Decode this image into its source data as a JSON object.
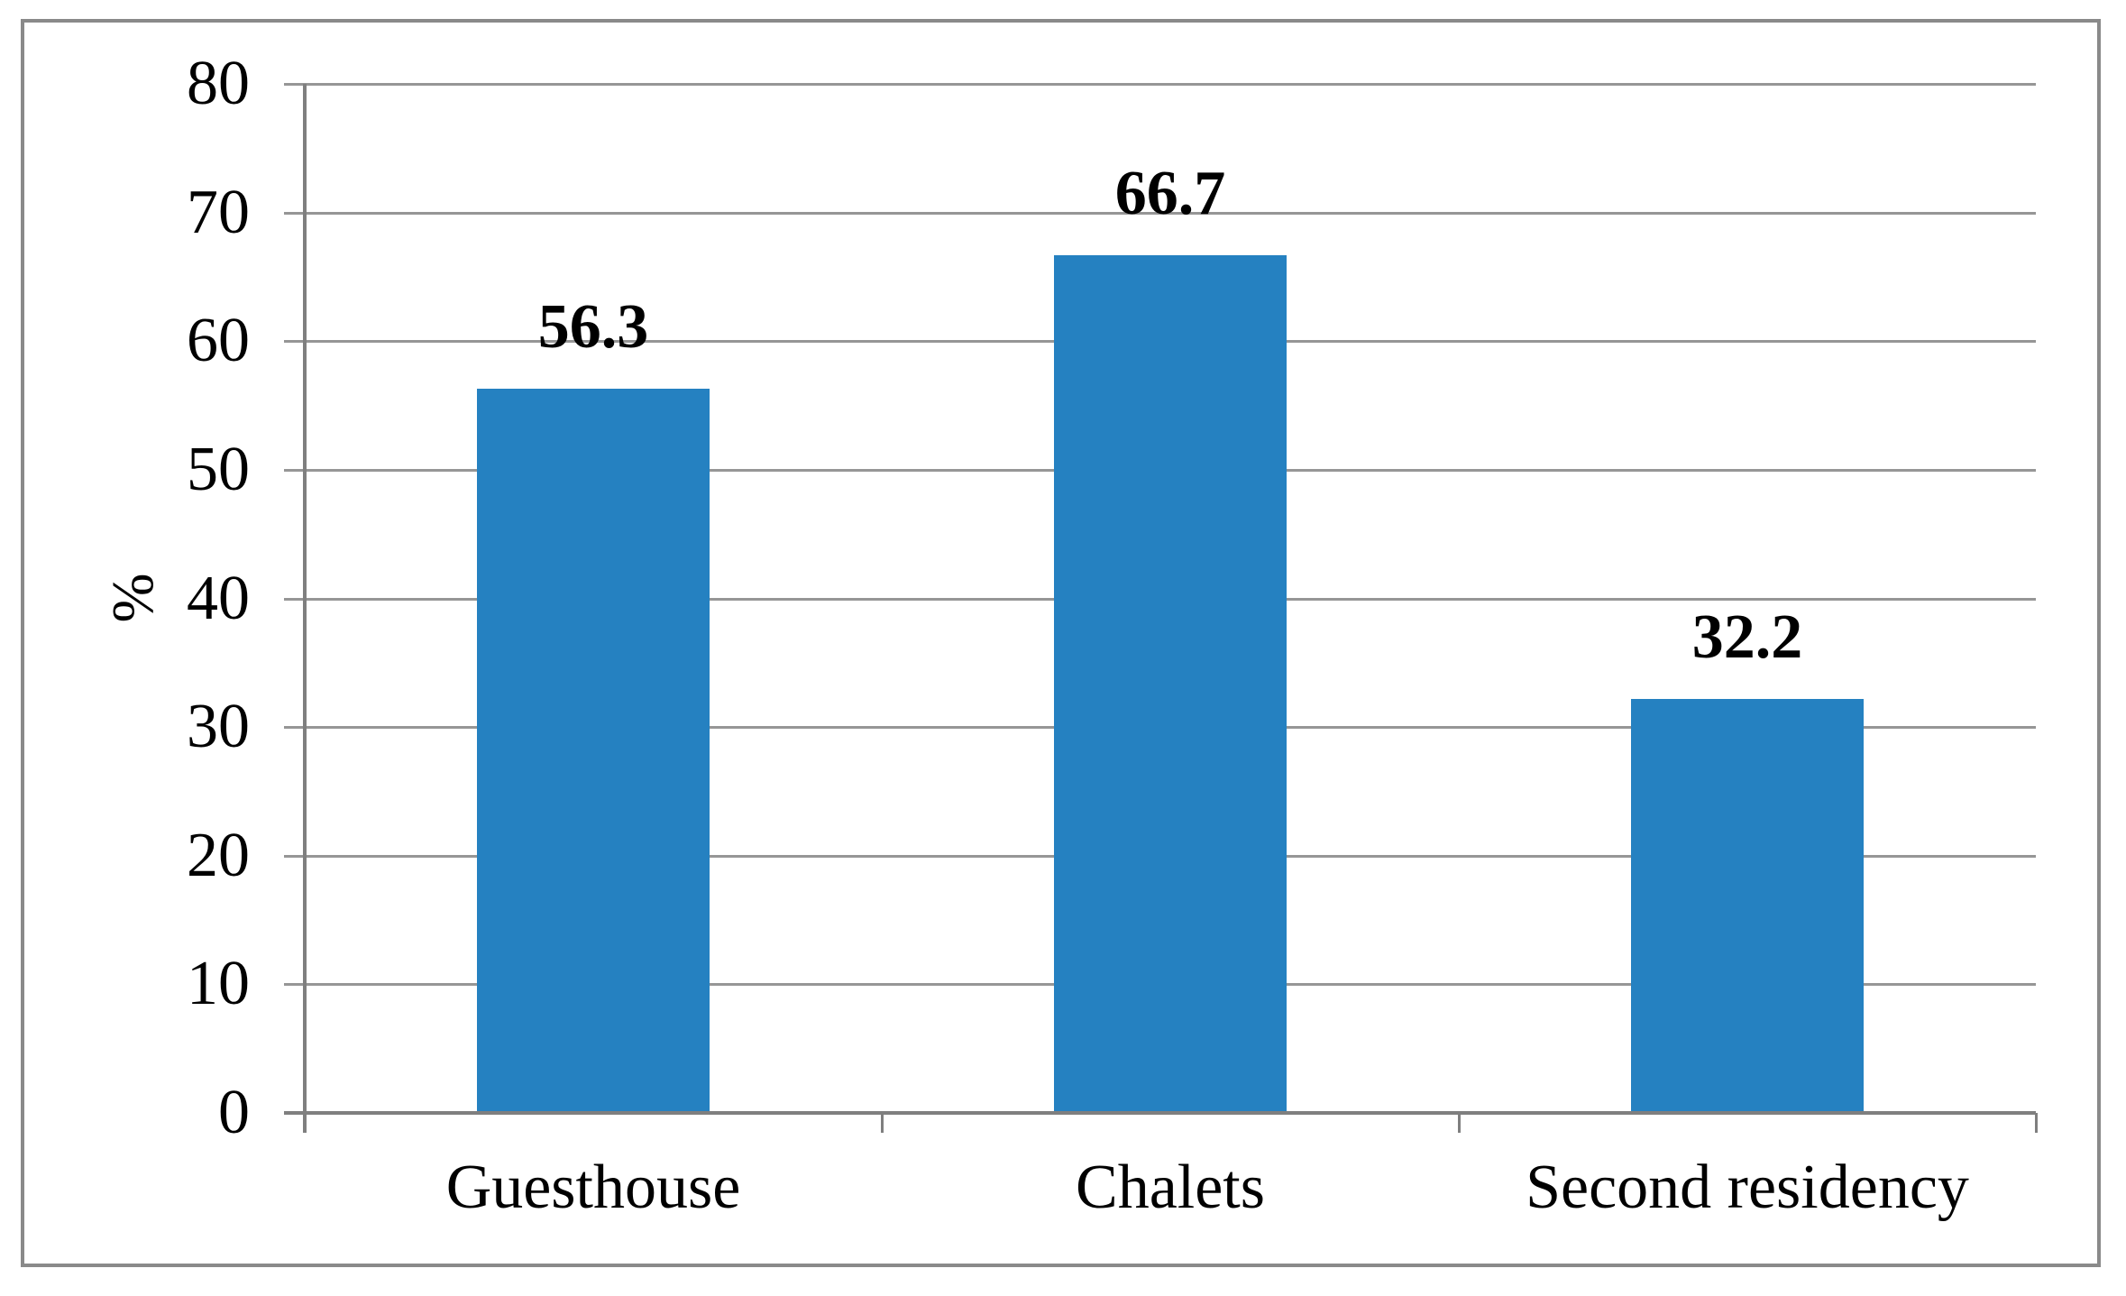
{
  "chart_data": {
    "type": "bar",
    "categories": [
      "Guesthouse",
      "Chalets",
      "Second residency"
    ],
    "values": [
      56.3,
      66.7,
      32.2
    ],
    "value_labels": [
      "56.3",
      "66.7",
      "32.2"
    ],
    "title": "",
    "xlabel": "",
    "ylabel": "%",
    "ylim": [
      0,
      80
    ],
    "yticks": [
      0,
      10,
      20,
      30,
      40,
      50,
      60,
      70,
      80
    ],
    "grid": true,
    "legend": false,
    "colors": {
      "bar": "#2581c1",
      "gridline": "#969696",
      "axis": "#7f7f7f",
      "frame_border": "#8a8a8a",
      "text": "#000000",
      "background": "#ffffff"
    }
  }
}
